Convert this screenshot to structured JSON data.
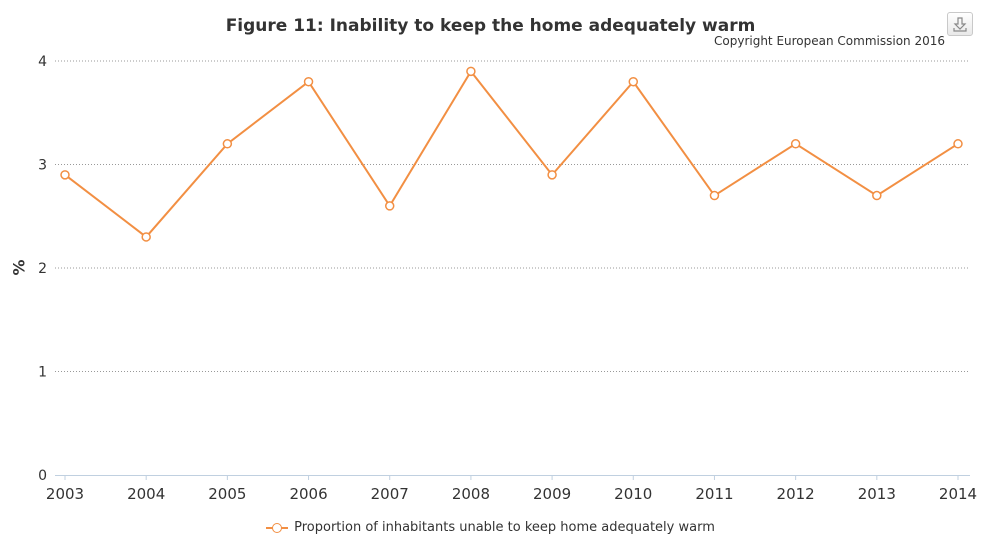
{
  "chart_data": {
    "type": "line",
    "title": "Figure 11: Inability to keep the home adequately warm",
    "credit": "Copyright European Commission 2016",
    "xlabel": "",
    "ylabel": "%",
    "categories": [
      "2003",
      "2004",
      "2005",
      "2006",
      "2007",
      "2008",
      "2009",
      "2010",
      "2011",
      "2012",
      "2013",
      "2014"
    ],
    "ylim": [
      0,
      4
    ],
    "yticks": [
      0,
      1,
      2,
      3,
      4
    ],
    "grid": true,
    "legend_position": "bottom-center",
    "series": [
      {
        "name": "Proportion of inhabitants unable to keep home adequately warm",
        "color": "#f28f43",
        "values": [
          2.9,
          2.3,
          3.2,
          3.8,
          2.6,
          3.9,
          2.9,
          3.8,
          2.7,
          3.2,
          2.7,
          3.2
        ]
      }
    ]
  },
  "toolbar": {
    "download_icon": "download-icon"
  }
}
